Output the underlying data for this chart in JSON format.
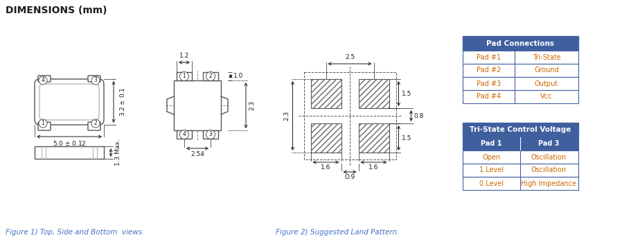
{
  "title": "DIMENSIONS (mm)",
  "title_color": "#1a1a1a",
  "title_fontsize": 10,
  "fig_bg": "#ffffff",
  "fig1_caption": "Figure 1) Top, Side and Bottom  views",
  "fig2_caption": "Figure 2) Suggested Land Pattern",
  "caption_color": "#4472c4",
  "caption_fontsize": 7.5,
  "pad_connections_header": "Pad Connections",
  "pad_connections": [
    [
      "Pad #1",
      "Tri-State"
    ],
    [
      "Pad #2",
      "Ground"
    ],
    [
      "Pad #3",
      "Output"
    ],
    [
      "Pad #4",
      "Vcc"
    ]
  ],
  "tristate_header": "Tri-State Control Voltage",
  "tristate_cols": [
    "Pad 1",
    "Pad 3"
  ],
  "tristate_rows": [
    [
      "Open",
      "Oscillation"
    ],
    [
      "1 Level",
      "Oscillation"
    ],
    [
      "0 Level",
      "High Impedance"
    ]
  ],
  "table_header_bg": "#3f5f9f",
  "table_header_fg": "#ffffff",
  "table_row_fg": "#cc6600",
  "table_border": "#3f5f9f",
  "dim_color": "#1a1a1a",
  "drawing_lw": 1.0
}
